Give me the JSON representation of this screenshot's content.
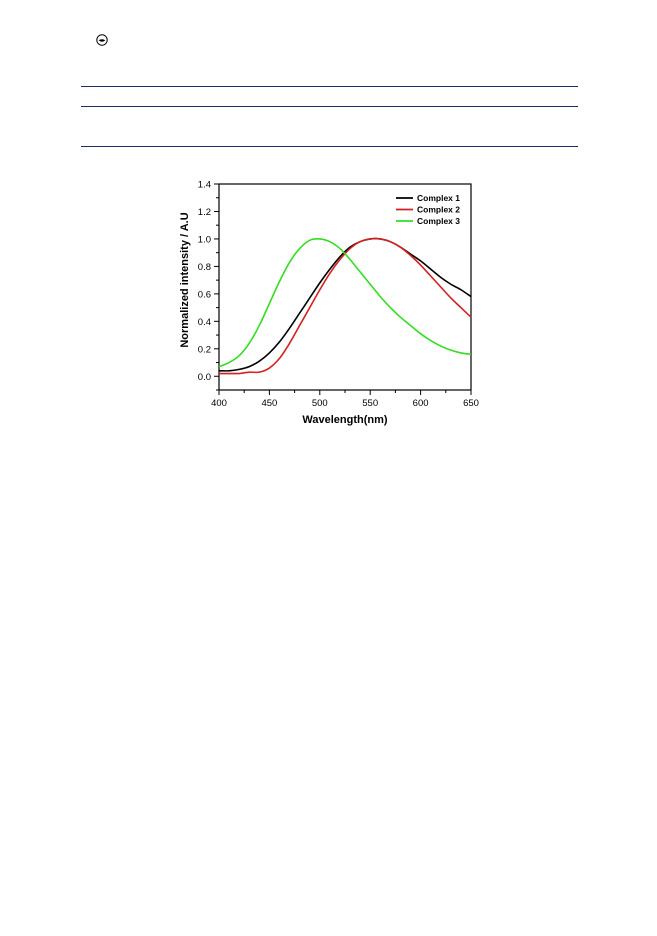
{
  "header": {
    "logo_icon": "circled-logo-icon"
  },
  "chart_data": {
    "type": "line",
    "xlabel": "Wavelength(nm)",
    "ylabel": "Normalized intensity / A.U",
    "xlim": [
      400,
      650
    ],
    "ylim": [
      -0.1,
      1.4
    ],
    "xticks": [
      "400",
      "450",
      "500",
      "550",
      "600",
      "650"
    ],
    "yticks": [
      "0.0",
      "0.2",
      "0.4",
      "0.6",
      "0.8",
      "1.0",
      "1.2",
      "1.4"
    ],
    "grid": false,
    "legend_position": "top-right",
    "series": [
      {
        "name": "Complex 1",
        "color": "#000000",
        "x": [
          400,
          410,
          420,
          430,
          440,
          450,
          460,
          470,
          480,
          490,
          500,
          510,
          520,
          530,
          540,
          550,
          560,
          570,
          580,
          590,
          600,
          610,
          620,
          630,
          640,
          650
        ],
        "y": [
          0.04,
          0.04,
          0.05,
          0.07,
          0.11,
          0.17,
          0.25,
          0.35,
          0.46,
          0.57,
          0.68,
          0.78,
          0.87,
          0.94,
          0.98,
          1.0,
          1.0,
          0.98,
          0.94,
          0.89,
          0.84,
          0.78,
          0.72,
          0.67,
          0.63,
          0.58
        ]
      },
      {
        "name": "Complex 2",
        "color": "#d42020",
        "x": [
          400,
          410,
          420,
          430,
          440,
          450,
          460,
          470,
          480,
          490,
          500,
          510,
          520,
          530,
          540,
          550,
          560,
          570,
          580,
          590,
          600,
          610,
          620,
          630,
          640,
          650
        ],
        "y": [
          0.02,
          0.02,
          0.02,
          0.03,
          0.03,
          0.06,
          0.13,
          0.24,
          0.37,
          0.5,
          0.63,
          0.75,
          0.85,
          0.93,
          0.98,
          1.0,
          1.0,
          0.98,
          0.94,
          0.88,
          0.81,
          0.73,
          0.65,
          0.57,
          0.5,
          0.43
        ]
      },
      {
        "name": "Complex 3",
        "color": "#33dd22",
        "x": [
          400,
          410,
          420,
          430,
          440,
          450,
          460,
          470,
          480,
          490,
          500,
          510,
          520,
          530,
          540,
          550,
          560,
          570,
          580,
          590,
          600,
          610,
          620,
          630,
          640,
          650
        ],
        "y": [
          0.07,
          0.1,
          0.15,
          0.24,
          0.37,
          0.53,
          0.69,
          0.83,
          0.93,
          0.99,
          1.0,
          0.98,
          0.93,
          0.85,
          0.76,
          0.67,
          0.58,
          0.5,
          0.43,
          0.37,
          0.31,
          0.26,
          0.22,
          0.19,
          0.17,
          0.16
        ]
      }
    ]
  }
}
